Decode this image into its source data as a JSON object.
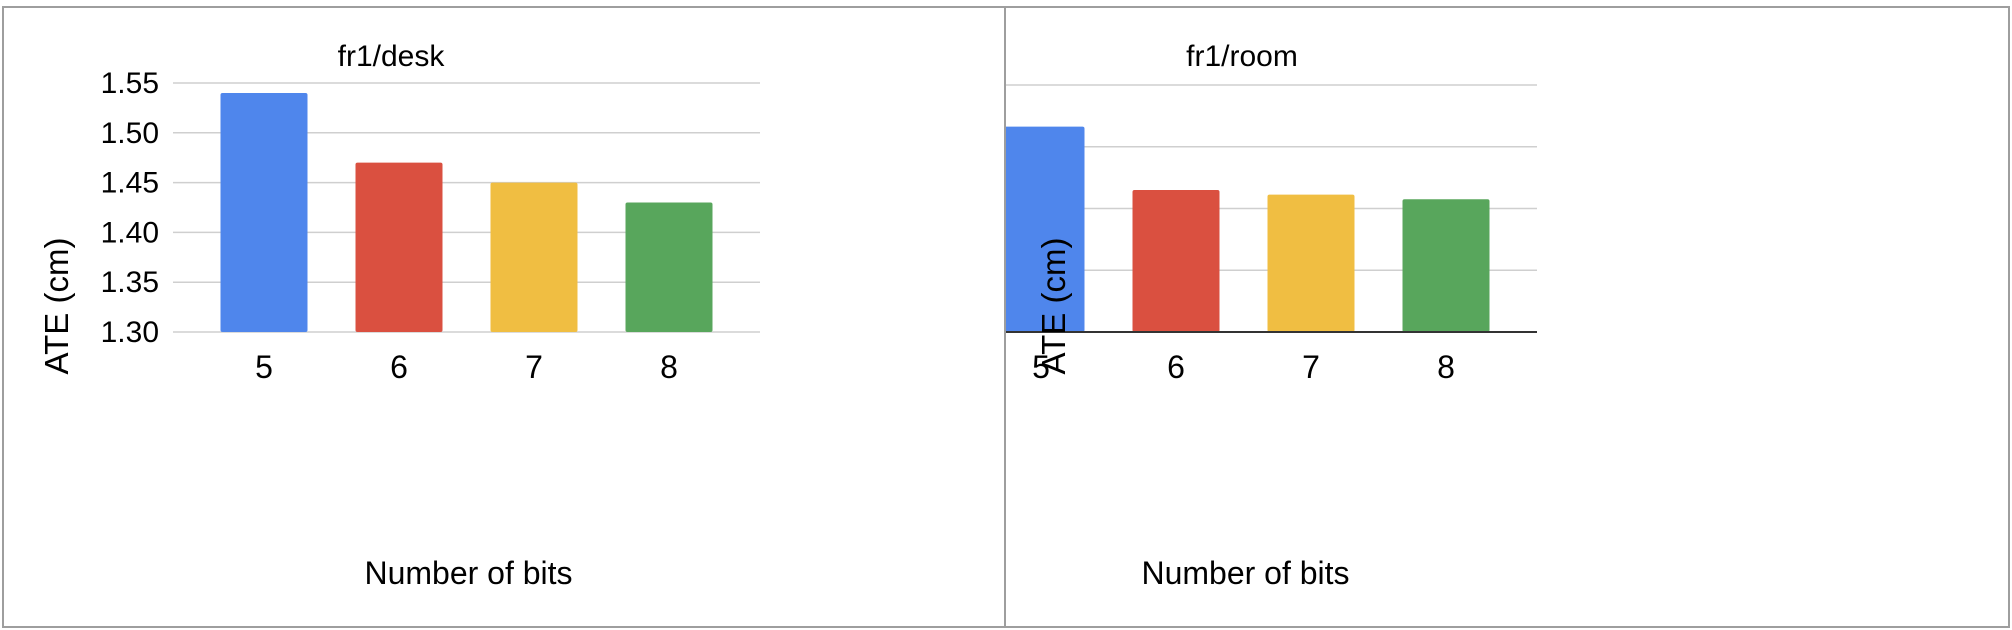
{
  "chart_data": [
    {
      "type": "bar",
      "title": "fr1/desk",
      "xlabel": "Number of bits",
      "ylabel": "ATE (cm)",
      "categories": [
        "5",
        "6",
        "7",
        "8"
      ],
      "values": [
        1.54,
        1.47,
        1.45,
        1.43
      ],
      "colors": [
        "#4f86ec",
        "#da5040",
        "#f0be42",
        "#58a65c"
      ],
      "ylim": [
        1.3,
        1.55
      ],
      "yticks": [
        "1.30",
        "1.35",
        "1.40",
        "1.45",
        "1.50",
        "1.55"
      ],
      "grid": true
    },
    {
      "type": "bar",
      "title": "fr1/room",
      "xlabel": "Number of bits",
      "ylabel": "ATE (cm)",
      "categories": [
        "5",
        "6",
        "7",
        "8"
      ],
      "values": [
        6.65,
        4.6,
        4.45,
        4.3
      ],
      "colors": [
        "#4f86ec",
        "#da5040",
        "#f0be42",
        "#58a65c"
      ],
      "ylim": [
        0,
        8
      ],
      "yticks": [
        "0",
        "2",
        "4",
        "6",
        "8"
      ],
      "grid": true
    }
  ]
}
